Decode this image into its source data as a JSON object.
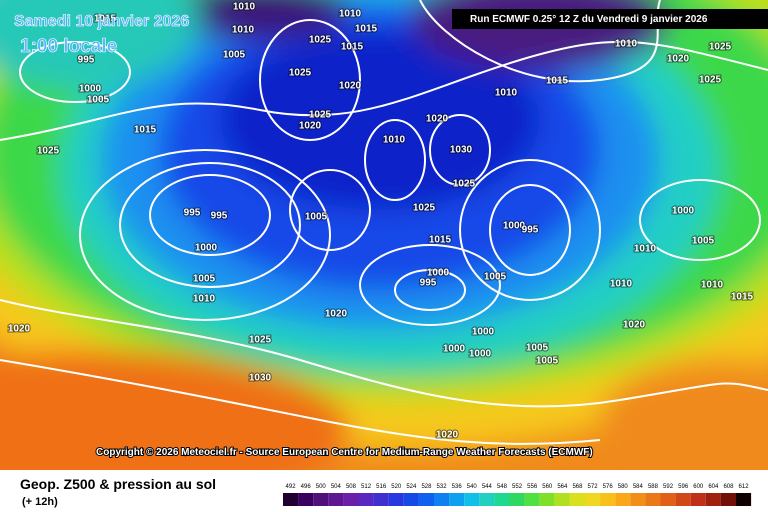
{
  "header": {
    "date": "Samedi 10 janvier 2026",
    "time": "1:00 locale",
    "run": "Run ECMWF 0.25° 12 Z du Vendredi 9 janvier 2026"
  },
  "copyright": "Copyright © 2026 Meteociel.fr - Source European Centre for Medium-Range Weather Forecasts (ECMWF)",
  "footer": {
    "title": "Geop. Z500 & pression au sol",
    "lead": "(+ 12h)"
  },
  "scale": [
    492,
    496,
    500,
    504,
    508,
    512,
    516,
    520,
    524,
    528,
    532,
    536,
    540,
    544,
    548,
    552,
    556,
    560,
    564,
    568,
    572,
    576,
    580,
    584,
    588,
    592,
    596,
    600,
    604,
    608,
    612
  ],
  "isobars": [
    "1010",
    "1010",
    "1015",
    "1010",
    "1015",
    "1025",
    "1015",
    "995",
    "1005",
    "1025",
    "1020",
    "1000",
    "1005",
    "1015",
    "1025",
    "1025",
    "1020",
    "1010",
    "1020",
    "1030",
    "1025",
    "1025",
    "995",
    "995",
    "1005",
    "1000",
    "1015",
    "1000",
    "995",
    "1005",
    "1010",
    "1000",
    "995",
    "1005",
    "1020",
    "1025",
    "1030",
    "1020",
    "1000",
    "1000",
    "1000",
    "1005",
    "1005",
    "1020",
    "1010",
    "1015",
    "1010",
    "1020",
    "1025",
    "1025",
    "1000",
    "1005",
    "1010",
    "1010",
    "1010",
    "1015",
    "1020"
  ]
}
